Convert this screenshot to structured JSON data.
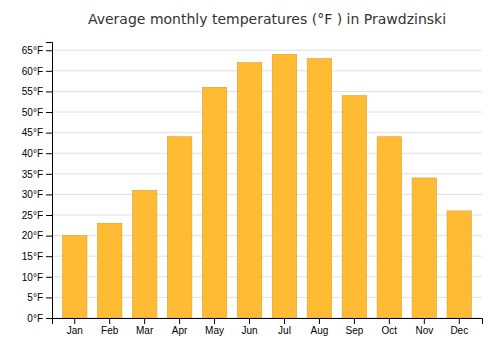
{
  "chart_data": {
    "type": "bar",
    "title": "Average monthly temperatures (°F ) in Prawdzinski",
    "categories": [
      "Jan",
      "Feb",
      "Mar",
      "Apr",
      "May",
      "Jun",
      "Jul",
      "Aug",
      "Sep",
      "Oct",
      "Nov",
      "Dec"
    ],
    "values": [
      20,
      23,
      31,
      44,
      56,
      62,
      64,
      63,
      54,
      44,
      34,
      26
    ],
    "color": "#FFBB33",
    "ylim": [
      0,
      67
    ],
    "yticks": [
      {
        "value": 0,
        "label": "0°F"
      },
      {
        "value": 5,
        "label": "5°F"
      },
      {
        "value": 10,
        "label": "10°F"
      },
      {
        "value": 15,
        "label": "15°F"
      },
      {
        "value": 20,
        "label": "20°F"
      },
      {
        "value": 25,
        "label": "25°F"
      },
      {
        "value": 30,
        "label": "30°F"
      },
      {
        "value": 35,
        "label": "35°F"
      },
      {
        "value": 40,
        "label": "40°F"
      },
      {
        "value": 45,
        "label": "45°F"
      },
      {
        "value": 50,
        "label": "50°F"
      },
      {
        "value": 55,
        "label": "55°F"
      },
      {
        "value": 60,
        "label": "60°F"
      },
      {
        "value": 65,
        "label": "65°F"
      }
    ],
    "grid": true
  }
}
